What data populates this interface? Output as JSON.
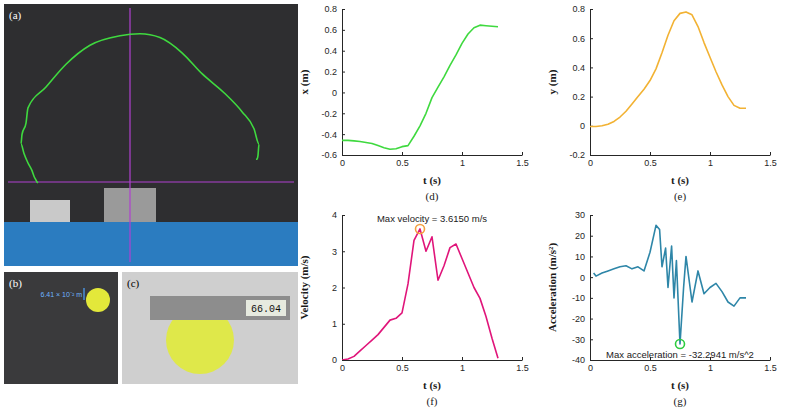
{
  "photos": [
    {
      "label": "(a)"
    },
    {
      "label": "(b)",
      "annotation": "6.41 × 10⁻² m"
    },
    {
      "label": "(c)",
      "annotation": "66.04"
    }
  ],
  "chart_data": [
    {
      "type": "line",
      "label": "(d)",
      "x_label": "t (s)",
      "y_label": "x (m)",
      "color": "#3fd93f",
      "x": [
        0,
        0.05,
        0.1,
        0.15,
        0.2,
        0.25,
        0.3,
        0.35,
        0.4,
        0.45,
        0.5,
        0.55,
        0.6,
        0.65,
        0.7,
        0.75,
        0.8,
        0.85,
        0.9,
        0.95,
        1.0,
        1.05,
        1.1,
        1.15,
        1.2,
        1.25,
        1.3
      ],
      "values": [
        -0.46,
        -0.46,
        -0.465,
        -0.47,
        -0.48,
        -0.49,
        -0.51,
        -0.53,
        -0.545,
        -0.54,
        -0.52,
        -0.51,
        -0.42,
        -0.32,
        -0.2,
        -0.05,
        0.05,
        0.15,
        0.26,
        0.36,
        0.47,
        0.56,
        0.62,
        0.645,
        0.64,
        0.635,
        0.63
      ],
      "xlim": [
        0,
        1.5
      ],
      "xticks": [
        0,
        0.5,
        1,
        1.5
      ],
      "ylim": [
        -0.6,
        0.8
      ],
      "yticks": [
        -0.6,
        -0.4,
        -0.2,
        0,
        0.2,
        0.4,
        0.6,
        0.8
      ]
    },
    {
      "type": "line",
      "label": "(e)",
      "x_label": "t (s)",
      "y_label": "y (m)",
      "color": "#f2b233",
      "x": [
        0,
        0.05,
        0.1,
        0.15,
        0.2,
        0.25,
        0.3,
        0.35,
        0.4,
        0.45,
        0.5,
        0.55,
        0.6,
        0.65,
        0.7,
        0.75,
        0.8,
        0.85,
        0.9,
        0.95,
        1.0,
        1.05,
        1.1,
        1.15,
        1.2,
        1.25,
        1.3
      ],
      "values": [
        -0.005,
        -0.005,
        0,
        0.01,
        0.03,
        0.06,
        0.1,
        0.15,
        0.2,
        0.25,
        0.31,
        0.39,
        0.5,
        0.62,
        0.72,
        0.77,
        0.78,
        0.76,
        0.68,
        0.57,
        0.47,
        0.37,
        0.28,
        0.2,
        0.14,
        0.12,
        0.12
      ],
      "xlim": [
        0,
        1.5
      ],
      "xticks": [
        0,
        0.5,
        1,
        1.5
      ],
      "ylim": [
        -0.2,
        0.8
      ],
      "yticks": [
        -0.2,
        0,
        0.2,
        0.4,
        0.6,
        0.8
      ]
    },
    {
      "type": "line",
      "label": "(f)",
      "x_label": "t (s)",
      "y_label": "Velocity (m/s)",
      "color": "#e0157a",
      "x": [
        0,
        0.05,
        0.1,
        0.15,
        0.2,
        0.25,
        0.3,
        0.35,
        0.4,
        0.45,
        0.5,
        0.55,
        0.6,
        0.65,
        0.7,
        0.75,
        0.8,
        0.85,
        0.9,
        0.95,
        1.0,
        1.05,
        1.1,
        1.15,
        1.2,
        1.25,
        1.3
      ],
      "values": [
        0,
        0.03,
        0.1,
        0.25,
        0.4,
        0.55,
        0.7,
        0.9,
        1.1,
        1.15,
        1.3,
        2.1,
        3.3,
        3.615,
        3.0,
        3.4,
        2.2,
        2.6,
        3.1,
        3.2,
        2.8,
        2.4,
        2.0,
        1.7,
        1.2,
        0.6,
        0.05
      ],
      "xlim": [
        0,
        1.5
      ],
      "xticks": [
        0,
        0.5,
        1,
        1.5
      ],
      "ylim": [
        0,
        4
      ],
      "yticks": [
        0,
        1,
        2,
        3,
        4
      ],
      "annotation": {
        "text": "Max velocity = 3.6150 m/s",
        "x": 0.65,
        "y": 3.615
      }
    },
    {
      "type": "line",
      "label": "(g)",
      "x_label": "t (s)",
      "y_label": "Acceleration (m/s²)",
      "color": "#2e86a8",
      "x": [
        0.03,
        0.05,
        0.1,
        0.15,
        0.2,
        0.25,
        0.3,
        0.35,
        0.4,
        0.45,
        0.5,
        0.55,
        0.58,
        0.6,
        0.63,
        0.65,
        0.68,
        0.7,
        0.72,
        0.75,
        0.78,
        0.8,
        0.85,
        0.9,
        0.95,
        1.0,
        1.05,
        1.1,
        1.15,
        1.2,
        1.25,
        1.3
      ],
      "values": [
        2,
        0.5,
        2,
        3,
        4,
        5,
        5.5,
        4,
        5,
        3,
        12,
        25,
        23,
        5,
        14,
        -5,
        15,
        -10,
        8,
        -32.2941,
        -5,
        10,
        -12,
        3,
        -8,
        -5,
        -3,
        -7,
        -12,
        -14,
        -10,
        -10
      ],
      "xlim": [
        0,
        1.5
      ],
      "xticks": [
        0,
        0.5,
        1,
        1.5
      ],
      "ylim": [
        -40,
        30
      ],
      "yticks": [
        -40,
        -30,
        -20,
        -10,
        0,
        10,
        20,
        30
      ],
      "annotation": {
        "text": "Max acceleration = -32.2941 m/s^2",
        "x": 0.75,
        "y": -32.2941
      }
    }
  ]
}
